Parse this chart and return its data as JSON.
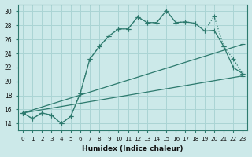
{
  "xlabel": "Humidex (Indice chaleur)",
  "bg_color": "#cce9e9",
  "line_color": "#2d7a6e",
  "grid_color": "#aad4d4",
  "xlim": [
    -0.5,
    23.5
  ],
  "ylim": [
    13,
    31
  ],
  "yticks": [
    14,
    16,
    18,
    20,
    22,
    24,
    26,
    28,
    30
  ],
  "xticks": [
    0,
    1,
    2,
    3,
    4,
    5,
    6,
    7,
    8,
    9,
    10,
    11,
    12,
    13,
    14,
    15,
    16,
    17,
    18,
    19,
    20,
    21,
    22,
    23
  ],
  "line1_x": [
    0,
    1,
    2,
    3,
    4,
    5,
    6,
    7,
    8,
    9,
    10,
    11,
    12,
    13,
    14,
    15,
    16,
    17,
    18,
    19,
    20,
    21,
    22,
    23
  ],
  "line1_y": [
    15.5,
    14.7,
    15.5,
    15.2,
    14.0,
    15.0,
    18.3,
    23.2,
    25.0,
    26.5,
    27.5,
    27.5,
    29.2,
    28.4,
    28.4,
    30.1,
    28.4,
    28.5,
    28.3,
    27.2,
    29.3,
    25.0,
    23.2,
    21.1
  ],
  "line2_x": [
    0,
    1,
    2,
    3,
    4,
    5,
    6,
    7,
    8,
    9,
    10,
    11,
    12,
    13,
    14,
    15,
    16,
    17,
    18,
    19,
    20,
    21,
    22,
    23
  ],
  "line2_y": [
    15.5,
    14.7,
    15.5,
    15.2,
    14.0,
    15.0,
    18.3,
    23.2,
    25.0,
    26.5,
    27.5,
    27.5,
    29.2,
    28.4,
    28.4,
    30.1,
    28.4,
    28.5,
    28.3,
    27.2,
    27.3,
    25.0,
    22.0,
    21.1
  ],
  "line3_x": [
    0,
    23
  ],
  "line3_y": [
    15.5,
    25.3
  ],
  "line4_x": [
    0,
    23
  ],
  "line4_y": [
    15.5,
    20.8
  ]
}
